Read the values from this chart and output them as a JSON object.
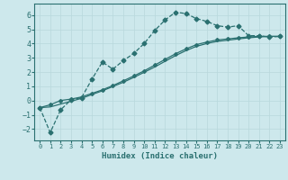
{
  "xlabel": "Humidex (Indice chaleur)",
  "ylabel": "",
  "xlim": [
    -0.5,
    23.5
  ],
  "ylim": [
    -2.8,
    6.8
  ],
  "xticks": [
    0,
    1,
    2,
    3,
    4,
    5,
    6,
    7,
    8,
    9,
    10,
    11,
    12,
    13,
    14,
    15,
    16,
    17,
    18,
    19,
    20,
    21,
    22,
    23
  ],
  "yticks": [
    -2,
    -1,
    0,
    1,
    2,
    3,
    4,
    5,
    6
  ],
  "bg_color": "#cde8ec",
  "grid_color": "#b8d8dc",
  "line_color": "#2a7070",
  "series": [
    {
      "x": [
        0,
        1,
        2,
        3,
        4,
        5,
        6,
        7,
        8,
        9,
        10,
        11,
        12,
        13,
        14,
        15,
        16,
        17,
        18,
        19,
        20,
        21,
        22,
        23
      ],
      "y": [
        -0.5,
        -2.25,
        -0.65,
        0.05,
        0.2,
        1.5,
        2.7,
        2.2,
        2.8,
        3.3,
        4.0,
        4.9,
        5.65,
        6.2,
        6.1,
        5.75,
        5.55,
        5.25,
        5.15,
        5.25,
        4.55,
        4.55,
        4.45,
        4.5
      ],
      "marker": "D",
      "markersize": 2.5,
      "linestyle": "--",
      "linewidth": 0.9
    },
    {
      "x": [
        0,
        1,
        2,
        3,
        4,
        5,
        6,
        7,
        8,
        9,
        10,
        11,
        12,
        13,
        14,
        15,
        16,
        17,
        18,
        19,
        20,
        21,
        22,
        23
      ],
      "y": [
        -0.5,
        -0.3,
        0.0,
        0.1,
        0.25,
        0.5,
        0.75,
        1.05,
        1.38,
        1.72,
        2.08,
        2.48,
        2.88,
        3.28,
        3.62,
        3.92,
        4.1,
        4.25,
        4.32,
        4.4,
        4.46,
        4.5,
        4.5,
        4.5
      ],
      "marker": "D",
      "markersize": 2.0,
      "linestyle": "-",
      "linewidth": 0.9
    },
    {
      "x": [
        0,
        1,
        2,
        3,
        4,
        5,
        6,
        7,
        8,
        9,
        10,
        11,
        12,
        13,
        14,
        15,
        16,
        17,
        18,
        19,
        20,
        21,
        22,
        23
      ],
      "y": [
        -0.5,
        -0.45,
        -0.25,
        -0.05,
        0.15,
        0.42,
        0.68,
        0.98,
        1.28,
        1.62,
        1.98,
        2.35,
        2.75,
        3.15,
        3.5,
        3.8,
        4.0,
        4.15,
        4.23,
        4.32,
        4.4,
        4.46,
        4.5,
        4.5
      ],
      "marker": null,
      "markersize": 0,
      "linestyle": "-",
      "linewidth": 0.9
    }
  ]
}
